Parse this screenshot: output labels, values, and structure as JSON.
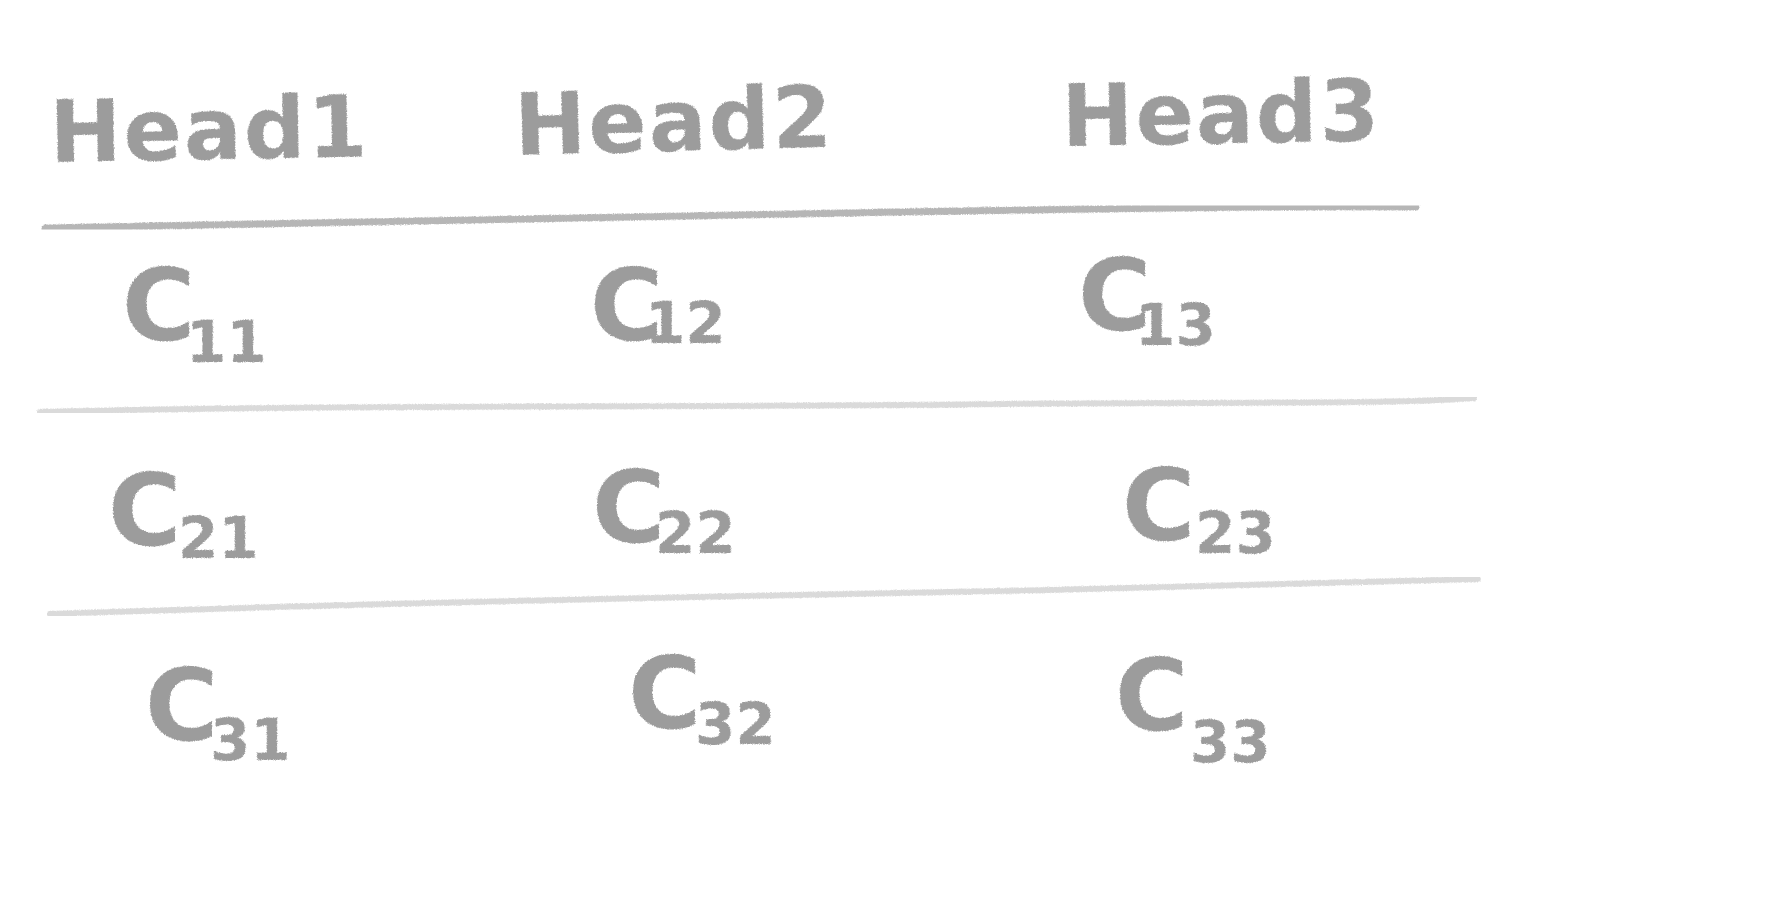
{
  "table": {
    "headers": [
      "Head1",
      "Head2",
      "Head3"
    ],
    "rows": [
      [
        {
          "letter": "C",
          "index": "11"
        },
        {
          "letter": "C",
          "index": "12"
        },
        {
          "letter": "C",
          "index": "13"
        }
      ],
      [
        {
          "letter": "C",
          "index": "21"
        },
        {
          "letter": "C",
          "index": "22"
        },
        {
          "letter": "C",
          "index": "23"
        }
      ],
      [
        {
          "letter": "C",
          "index": "31"
        },
        {
          "letter": "C",
          "index": "32"
        },
        {
          "letter": "C",
          "index": "33"
        }
      ]
    ]
  },
  "colors": {
    "ink": "#8a8a8a",
    "paper": "#ffffff"
  }
}
